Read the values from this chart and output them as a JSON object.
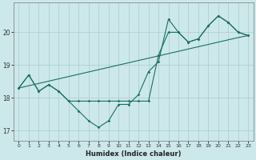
{
  "xlabel": "Humidex (Indice chaleur)",
  "x_values": [
    0,
    1,
    2,
    3,
    4,
    5,
    6,
    7,
    8,
    9,
    10,
    11,
    12,
    13,
    14,
    15,
    16,
    17,
    18,
    19,
    20,
    21,
    22,
    23
  ],
  "line_zigzag": [
    18.3,
    18.7,
    18.2,
    18.4,
    18.2,
    17.9,
    17.6,
    17.3,
    17.1,
    17.3,
    17.8,
    17.8,
    18.1,
    18.8,
    19.1,
    20.4,
    20.0,
    19.7,
    19.8,
    20.2,
    20.5,
    20.3,
    20.0,
    19.9
  ],
  "line_upper": [
    18.3,
    18.7,
    18.2,
    18.4,
    18.2,
    17.9,
    17.9,
    17.9,
    17.9,
    17.9,
    17.9,
    17.9,
    17.9,
    17.9,
    19.3,
    20.0,
    20.0,
    19.7,
    19.8,
    20.2,
    20.5,
    20.3,
    20.0,
    19.9
  ],
  "line_trend": [
    18.3,
    18.37,
    18.44,
    18.51,
    18.58,
    18.65,
    18.72,
    18.79,
    18.86,
    18.93,
    19.0,
    19.07,
    19.14,
    19.21,
    19.28,
    19.35,
    19.42,
    19.49,
    19.56,
    19.63,
    19.7,
    19.77,
    19.84,
    19.9
  ],
  "bg_color": "#cce8ea",
  "grid_color": "#aacccc",
  "line_color": "#1a6e64",
  "ylim": [
    16.7,
    20.9
  ],
  "yticks": [
    17,
    18,
    19,
    20
  ],
  "xticks": [
    0,
    1,
    2,
    3,
    4,
    5,
    6,
    7,
    8,
    9,
    10,
    11,
    12,
    13,
    14,
    15,
    16,
    17,
    18,
    19,
    20,
    21,
    22,
    23
  ],
  "xlim": [
    -0.5,
    23.5
  ]
}
